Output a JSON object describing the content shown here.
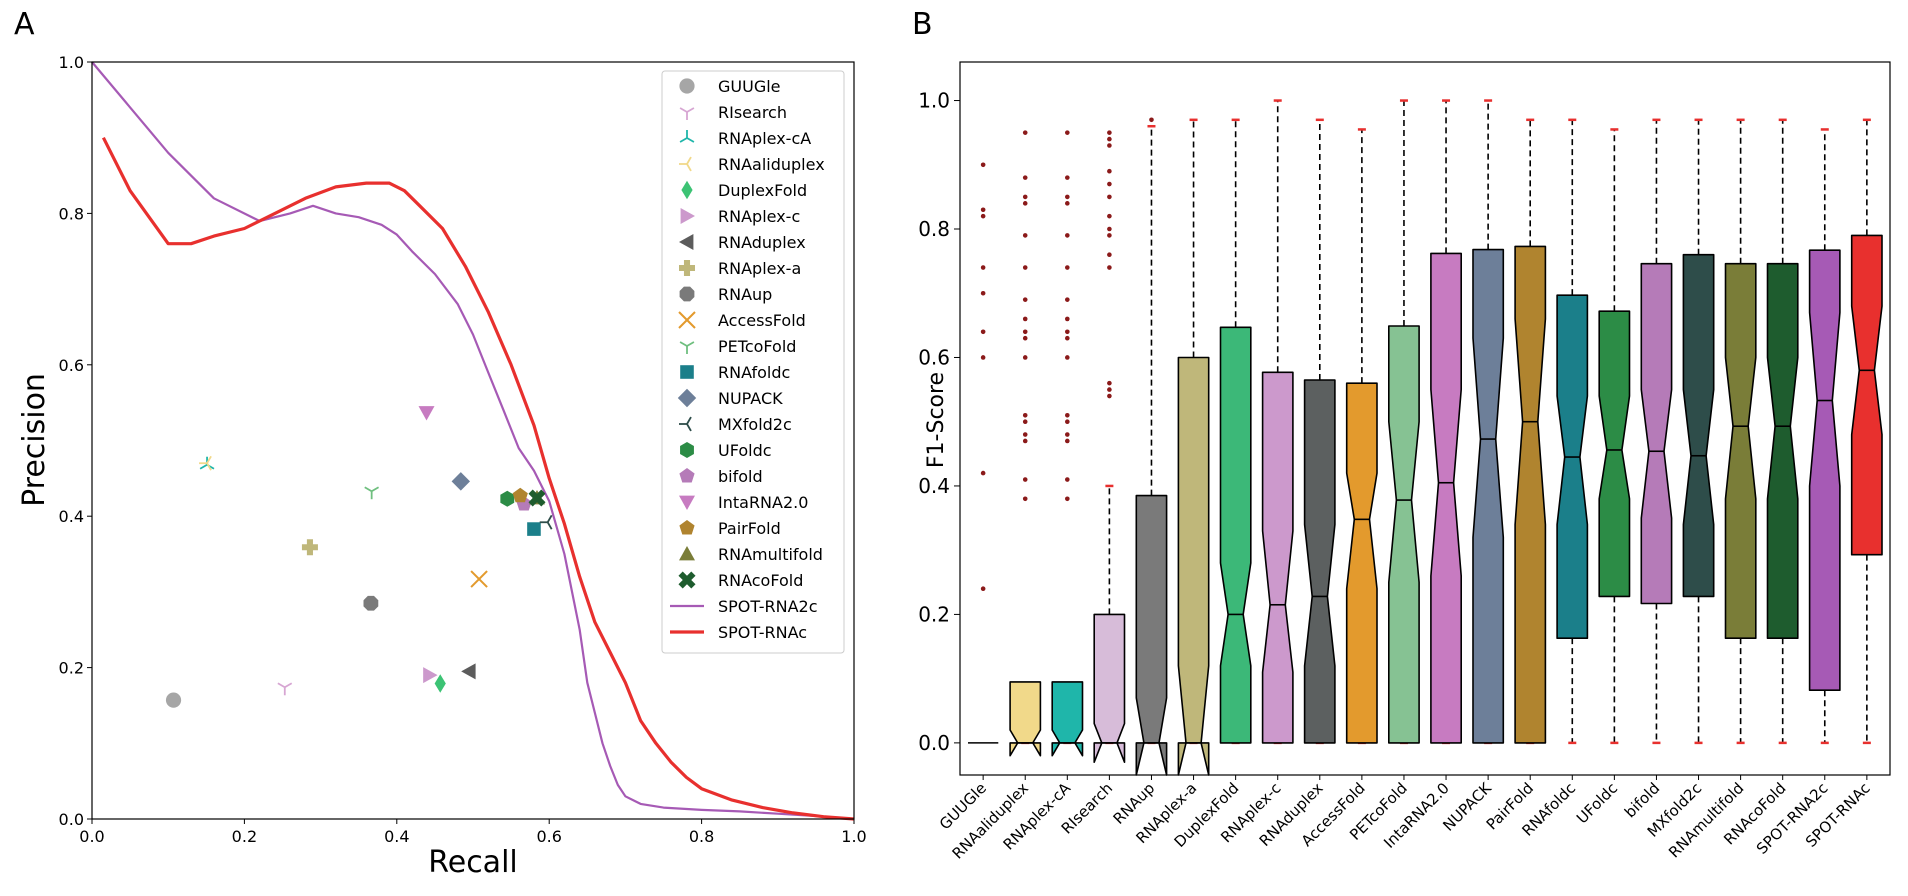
{
  "panels": {
    "a_letter": "A",
    "b_letter": "B"
  },
  "chart_data": [
    {
      "type": "scatter",
      "xlabel": "Recall",
      "ylabel": "Precision",
      "xlim": [
        0,
        1
      ],
      "ylim": [
        0,
        1
      ],
      "xticks": [
        "0.0",
        "0.2",
        "0.4",
        "0.6",
        "0.8",
        "1.0"
      ],
      "yticks": [
        "0.0",
        "0.2",
        "0.4",
        "0.6",
        "0.8",
        "1.0"
      ],
      "grid": false,
      "legend_position": "top-right",
      "points": [
        {
          "name": "GUUGle",
          "x": 0.107,
          "y": 0.157,
          "marker": "circle",
          "color": "#a6a6a6"
        },
        {
          "name": "RIsearch",
          "x": 0.253,
          "y": 0.174,
          "marker": "tri_down",
          "color": "#d7a6d3"
        },
        {
          "name": "RNAplex-cA",
          "x": 0.151,
          "y": 0.468,
          "marker": "tri_up",
          "color": "#1fb6aa"
        },
        {
          "name": "RNAaliduplex",
          "x": 0.151,
          "y": 0.47,
          "marker": "tri_left",
          "color": "#f1d98a"
        },
        {
          "name": "DuplexFold",
          "x": 0.457,
          "y": 0.179,
          "marker": "thin_diamond",
          "color": "#3cc374"
        },
        {
          "name": "RNAplex-c",
          "x": 0.443,
          "y": 0.19,
          "marker": "triangle_right",
          "color": "#cc99cc"
        },
        {
          "name": "RNAduplex",
          "x": 0.495,
          "y": 0.195,
          "marker": "triangle_left",
          "color": "#5c5c5c"
        },
        {
          "name": "RNAplex-a",
          "x": 0.286,
          "y": 0.359,
          "marker": "plus",
          "color": "#bfb77a"
        },
        {
          "name": "RNAup",
          "x": 0.366,
          "y": 0.285,
          "marker": "octagon",
          "color": "#7a7a7a"
        },
        {
          "name": "AccessFold",
          "x": 0.508,
          "y": 0.317,
          "marker": "x",
          "color": "#e39a2d"
        },
        {
          "name": "PETcoFold",
          "x": 0.367,
          "y": 0.433,
          "marker": "tri_down",
          "color": "#6fbf7f"
        },
        {
          "name": "RNAfoldc",
          "x": 0.58,
          "y": 0.383,
          "marker": "square",
          "color": "#1b7f8a"
        },
        {
          "name": "NUPACK",
          "x": 0.484,
          "y": 0.446,
          "marker": "diamond",
          "color": "#6d7f99"
        },
        {
          "name": "MXfold2c",
          "x": 0.598,
          "y": 0.392,
          "marker": "tri_left",
          "color": "#2e4d4a"
        },
        {
          "name": "UFoldc",
          "x": 0.545,
          "y": 0.423,
          "marker": "hexagon",
          "color": "#2c8c46"
        },
        {
          "name": "bifold",
          "x": 0.567,
          "y": 0.416,
          "marker": "pentagon",
          "color": "#b57bb8"
        },
        {
          "name": "IntaRNA2.0",
          "x": 0.439,
          "y": 0.537,
          "marker": "triangle_down",
          "color": "#c77bc1"
        },
        {
          "name": "PairFold",
          "x": 0.562,
          "y": 0.427,
          "marker": "pentagon",
          "color": "#b0842f"
        },
        {
          "name": "RNAmultifold",
          "x": 0.584,
          "y": 0.424,
          "marker": "triangle_up",
          "color": "#7a7d38"
        },
        {
          "name": "RNAcoFold",
          "x": 0.584,
          "y": 0.424,
          "marker": "x_filled",
          "color": "#1e5c2e"
        }
      ],
      "series": [
        {
          "name": "SPOT-RNA2c",
          "color": "#a65ab5",
          "x": [
            0.0,
            0.05,
            0.1,
            0.16,
            0.22,
            0.26,
            0.29,
            0.32,
            0.35,
            0.38,
            0.4,
            0.42,
            0.45,
            0.48,
            0.5,
            0.52,
            0.54,
            0.56,
            0.58,
            0.6,
            0.62,
            0.64,
            0.65,
            0.66,
            0.67,
            0.68,
            0.69,
            0.7,
            0.72,
            0.75,
            0.8,
            0.85,
            0.9,
            0.95,
            1.0
          ],
          "y": [
            1.0,
            0.94,
            0.88,
            0.82,
            0.79,
            0.8,
            0.81,
            0.8,
            0.795,
            0.785,
            0.772,
            0.75,
            0.72,
            0.68,
            0.64,
            0.59,
            0.54,
            0.49,
            0.46,
            0.42,
            0.35,
            0.25,
            0.18,
            0.14,
            0.1,
            0.07,
            0.045,
            0.03,
            0.02,
            0.015,
            0.012,
            0.01,
            0.007,
            0.004,
            0.0
          ]
        },
        {
          "name": "SPOT-RNAc",
          "color": "#e8302e",
          "x": [
            0.015,
            0.05,
            0.1,
            0.13,
            0.16,
            0.2,
            0.24,
            0.28,
            0.32,
            0.36,
            0.39,
            0.41,
            0.43,
            0.46,
            0.49,
            0.52,
            0.55,
            0.58,
            0.6,
            0.62,
            0.64,
            0.66,
            0.68,
            0.7,
            0.72,
            0.74,
            0.76,
            0.78,
            0.8,
            0.84,
            0.88,
            0.92,
            0.96,
            1.0
          ],
          "y": [
            0.9,
            0.83,
            0.76,
            0.76,
            0.77,
            0.78,
            0.8,
            0.82,
            0.835,
            0.84,
            0.84,
            0.83,
            0.81,
            0.78,
            0.73,
            0.67,
            0.6,
            0.52,
            0.45,
            0.39,
            0.32,
            0.26,
            0.22,
            0.18,
            0.13,
            0.1,
            0.075,
            0.055,
            0.04,
            0.025,
            0.015,
            0.008,
            0.003,
            0.0
          ]
        }
      ]
    },
    {
      "type": "box",
      "ylabel": "F1-Score",
      "ylim": [
        -0.05,
        1.06
      ],
      "yticks": [
        "0.0",
        "0.2",
        "0.4",
        "0.6",
        "0.8",
        "1.0"
      ],
      "grid": false,
      "boxes": [
        {
          "name": "GUUGle",
          "color": "#a6a6a6",
          "q1": 0.0,
          "median": 0.0,
          "q3": 0.0,
          "whisker_low": 0.0,
          "whisker_high": 0.0,
          "notch_low": 0.0,
          "notch_high": 0.0,
          "outliers": [
            0.24,
            0.42,
            0.6,
            0.64,
            0.7,
            0.74,
            0.82,
            0.83,
            0.9
          ]
        },
        {
          "name": "RNAaliduplex",
          "color": "#f1d98a",
          "q1": 0.0,
          "median": 0.0,
          "q3": 0.095,
          "whisker_low": 0.0,
          "whisker_high": 0.095,
          "notch_low": -0.02,
          "notch_high": 0.02,
          "outliers": [
            0.38,
            0.41,
            0.47,
            0.48,
            0.5,
            0.51,
            0.6,
            0.63,
            0.64,
            0.66,
            0.69,
            0.74,
            0.79,
            0.84,
            0.85,
            0.88,
            0.95
          ]
        },
        {
          "name": "RNAplex-cA",
          "color": "#1fb6aa",
          "q1": 0.0,
          "median": 0.0,
          "q3": 0.095,
          "whisker_low": 0.0,
          "whisker_high": 0.095,
          "notch_low": -0.02,
          "notch_high": 0.02,
          "outliers": [
            0.38,
            0.41,
            0.47,
            0.48,
            0.5,
            0.51,
            0.6,
            0.63,
            0.64,
            0.66,
            0.69,
            0.74,
            0.79,
            0.84,
            0.85,
            0.88,
            0.95
          ]
        },
        {
          "name": "RIsearch",
          "color": "#d7bcd9",
          "q1": 0.0,
          "median": 0.0,
          "q3": 0.2,
          "whisker_low": 0.0,
          "whisker_high": 0.4,
          "notch_low": -0.03,
          "notch_high": 0.03,
          "outliers": [
            0.54,
            0.55,
            0.56,
            0.74,
            0.76,
            0.79,
            0.8,
            0.82,
            0.85,
            0.87,
            0.89,
            0.93,
            0.94,
            0.95
          ]
        },
        {
          "name": "RNAup",
          "color": "#7a7a7a",
          "q1": 0.0,
          "median": 0.0,
          "q3": 0.385,
          "whisker_low": 0.0,
          "whisker_high": 0.96,
          "notch_low": -0.05,
          "notch_high": 0.07,
          "outliers": [
            0.97
          ]
        },
        {
          "name": "RNAplex-a",
          "color": "#bfb77a",
          "q1": 0.0,
          "median": 0.0,
          "q3": 0.6,
          "whisker_low": 0.0,
          "whisker_high": 0.97,
          "notch_low": -0.05,
          "notch_high": 0.12,
          "outliers": []
        },
        {
          "name": "DuplexFold",
          "color": "#3cb878",
          "q1": 0.0,
          "median": 0.2,
          "q3": 0.647,
          "whisker_low": 0.0,
          "whisker_high": 0.97,
          "notch_low": 0.12,
          "notch_high": 0.28,
          "outliers": []
        },
        {
          "name": "RNAplex-c",
          "color": "#cc99cc",
          "q1": 0.0,
          "median": 0.215,
          "q3": 0.577,
          "whisker_low": 0.0,
          "whisker_high": 1.0,
          "notch_low": 0.11,
          "notch_high": 0.33,
          "outliers": []
        },
        {
          "name": "RNAduplex",
          "color": "#5c6060",
          "q1": 0.0,
          "median": 0.228,
          "q3": 0.565,
          "whisker_low": 0.0,
          "whisker_high": 0.97,
          "notch_low": 0.12,
          "notch_high": 0.34,
          "outliers": []
        },
        {
          "name": "AccessFold",
          "color": "#e39a2d",
          "q1": 0.0,
          "median": 0.348,
          "q3": 0.56,
          "whisker_low": 0.0,
          "whisker_high": 0.955,
          "notch_low": 0.24,
          "notch_high": 0.42,
          "outliers": []
        },
        {
          "name": "PETcoFold",
          "color": "#86c293",
          "q1": 0.0,
          "median": 0.378,
          "q3": 0.649,
          "whisker_low": 0.0,
          "whisker_high": 1.0,
          "notch_low": 0.25,
          "notch_high": 0.5,
          "outliers": []
        },
        {
          "name": "IntaRNA2.0",
          "color": "#c77bc1",
          "q1": 0.0,
          "median": 0.405,
          "q3": 0.762,
          "whisker_low": 0.0,
          "whisker_high": 1.0,
          "notch_low": 0.26,
          "notch_high": 0.55,
          "outliers": []
        },
        {
          "name": "NUPACK",
          "color": "#6d7f99",
          "q1": 0.0,
          "median": 0.473,
          "q3": 0.768,
          "whisker_low": 0.0,
          "whisker_high": 1.0,
          "notch_low": 0.32,
          "notch_high": 0.63,
          "outliers": []
        },
        {
          "name": "PairFold",
          "color": "#b0842f",
          "q1": 0.0,
          "median": 0.5,
          "q3": 0.773,
          "whisker_low": 0.0,
          "whisker_high": 0.97,
          "notch_low": 0.34,
          "notch_high": 0.66,
          "outliers": []
        },
        {
          "name": "RNAfoldc",
          "color": "#1b7f8a",
          "q1": 0.163,
          "median": 0.445,
          "q3": 0.697,
          "whisker_low": 0.0,
          "whisker_high": 0.97,
          "notch_low": 0.34,
          "notch_high": 0.54,
          "outliers": []
        },
        {
          "name": "UFoldc",
          "color": "#2c8c46",
          "q1": 0.228,
          "median": 0.456,
          "q3": 0.672,
          "whisker_low": 0.0,
          "whisker_high": 0.955,
          "notch_low": 0.38,
          "notch_high": 0.54,
          "outliers": []
        },
        {
          "name": "bifold",
          "color": "#b57bb8",
          "q1": 0.217,
          "median": 0.454,
          "q3": 0.746,
          "whisker_low": 0.0,
          "whisker_high": 0.97,
          "notch_low": 0.35,
          "notch_high": 0.55,
          "outliers": []
        },
        {
          "name": "MXfold2c",
          "color": "#2e4d4a",
          "q1": 0.228,
          "median": 0.447,
          "q3": 0.76,
          "whisker_low": 0.0,
          "whisker_high": 0.97,
          "notch_low": 0.34,
          "notch_high": 0.55,
          "outliers": []
        },
        {
          "name": "RNAmultifold",
          "color": "#7a7d38",
          "q1": 0.163,
          "median": 0.493,
          "q3": 0.746,
          "whisker_low": 0.0,
          "whisker_high": 0.97,
          "notch_low": 0.38,
          "notch_high": 0.6,
          "outliers": []
        },
        {
          "name": "RNAcoFold",
          "color": "#1e5c2e",
          "q1": 0.163,
          "median": 0.493,
          "q3": 0.746,
          "whisker_low": 0.0,
          "whisker_high": 0.97,
          "notch_low": 0.38,
          "notch_high": 0.6,
          "outliers": []
        },
        {
          "name": "SPOT-RNA2c",
          "color": "#a65ab5",
          "q1": 0.082,
          "median": 0.533,
          "q3": 0.767,
          "whisker_low": 0.0,
          "whisker_high": 0.955,
          "notch_low": 0.4,
          "notch_high": 0.67,
          "outliers": []
        },
        {
          "name": "SPOT-RNAc",
          "color": "#e8302e",
          "q1": 0.293,
          "median": 0.58,
          "q3": 0.79,
          "whisker_low": 0.0,
          "whisker_high": 0.97,
          "notch_low": 0.48,
          "notch_high": 0.68,
          "outliers": []
        }
      ]
    }
  ]
}
